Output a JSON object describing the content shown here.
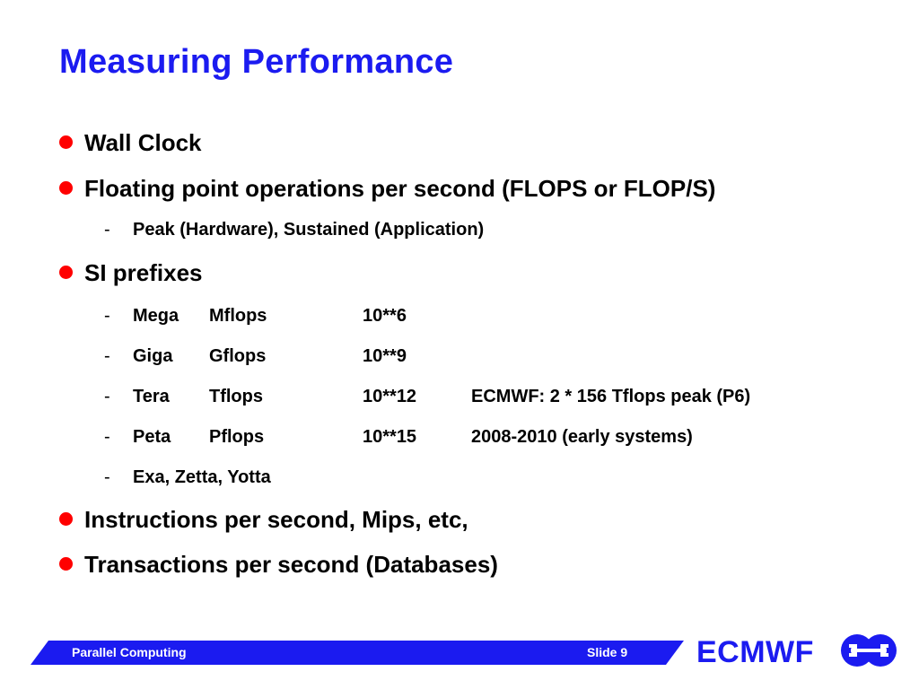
{
  "slide": {
    "title": "Measuring Performance",
    "bullets": [
      "Wall Clock",
      "Floating point operations per second (FLOPS or FLOP/S)",
      "SI prefixes",
      "Instructions per second, Mips, etc,",
      "Transactions per second (Databases)"
    ],
    "flops_sub": "Peak (Hardware), Sustained (Application)",
    "prefix_rows": [
      {
        "prefix": "Mega",
        "unit": "Mflops",
        "power": "10**6",
        "note": ""
      },
      {
        "prefix": "Giga",
        "unit": "Gflops",
        "power": "10**9",
        "note": ""
      },
      {
        "prefix": "Tera",
        "unit": "Tflops",
        "power": "10**12",
        "note": "ECMWF: 2 * 156 Tflops peak (P6)"
      },
      {
        "prefix": "Peta",
        "unit": "Pflops",
        "power": "10**15",
        "note": "2008-2010 (early systems)"
      }
    ],
    "prefix_more": "Exa, Zetta, Yotta",
    "dash": "-"
  },
  "footer": {
    "left": "Parallel Computing",
    "right": "Slide 9",
    "brand": "ECMWF"
  },
  "colors": {
    "title": "#1b1bf0",
    "bullet": "#ff0000",
    "footer_bar": "#1b1bf0",
    "brand": "#1b1bf0"
  }
}
